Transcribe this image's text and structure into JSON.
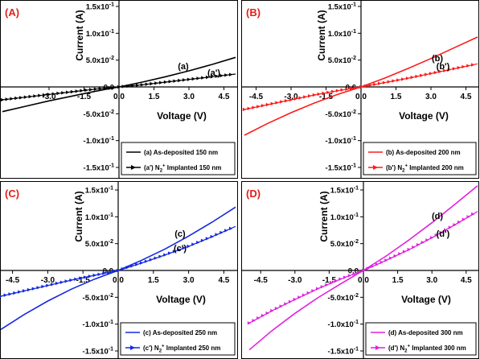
{
  "colors": {
    "axis": "#000000",
    "panel_label": "#e0201a",
    "text": "#000000"
  },
  "chart_data": [
    {
      "type": "line",
      "panel_label": "(A)",
      "xlabel": "Voltage (V)",
      "ylabel": "Current (A)",
      "xlim": [
        -5,
        5
      ],
      "ylim": [
        -0.15,
        0.15
      ],
      "x_ticks": [
        "-3.0",
        "-1.5",
        "0.0",
        "1.5",
        "3.0",
        "4.5"
      ],
      "y_ticks": [
        "1.5x10⁻¹",
        "1.0x10⁻¹",
        "5.0x10⁻²",
        "0.0",
        "-5.0x10⁻²",
        "-1.0x10⁻¹",
        "-1.5x10⁻¹"
      ],
      "series": [
        {
          "name": "(a) As-deposited 150 nm",
          "label": "(a)",
          "color": "#000000",
          "style": "solid",
          "x": [
            -5,
            -4,
            -3,
            -2,
            -1,
            0,
            1,
            2,
            3,
            4,
            5
          ],
          "values": [
            -0.046,
            -0.036,
            -0.026,
            -0.017,
            -0.008,
            0.0,
            0.009,
            0.019,
            0.03,
            0.042,
            0.055
          ]
        },
        {
          "name": "(a') N₂⁺ Implanted 150 nm",
          "label": "(a')",
          "color": "#000000",
          "style": "marker",
          "x": [
            -5,
            -4,
            -3,
            -2,
            -1,
            0,
            1,
            2,
            3,
            4,
            5
          ],
          "values": [
            -0.024,
            -0.019,
            -0.014,
            -0.009,
            -0.004,
            0.0,
            0.004,
            0.009,
            0.014,
            0.019,
            0.024
          ]
        }
      ],
      "legend": [
        {
          "prefix": "(a) As-deposited 150 nm",
          "suffix": ""
        },
        {
          "prefix": "(a') N",
          "sub": "2",
          "sup": "+",
          "suffix": " Implanted 150 nm"
        }
      ]
    },
    {
      "type": "line",
      "panel_label": "(B)",
      "xlabel": "Voltage (V)",
      "ylabel": "Current (A)",
      "xlim": [
        -5,
        5
      ],
      "ylim": [
        -0.15,
        0.15
      ],
      "x_ticks": [
        "-4.5",
        "-3.0",
        "-1.5",
        "0.0",
        "1.5",
        "3.0",
        "4.5"
      ],
      "y_ticks": [
        "1.5x10⁻¹",
        "1.0x10⁻¹",
        "5.0x10⁻²",
        "0.0",
        "-5.0x10⁻²",
        "-1.0x10⁻¹",
        "-1.5x10⁻¹"
      ],
      "series": [
        {
          "name": "(b) As-deposited 200 nm",
          "label": "(b)",
          "color": "#ff1a1a",
          "style": "solid",
          "x": [
            -5,
            -4,
            -3,
            -2,
            -1,
            0,
            1,
            2,
            3,
            4,
            5
          ],
          "values": [
            -0.09,
            -0.068,
            -0.048,
            -0.03,
            -0.014,
            0.0,
            0.016,
            0.034,
            0.053,
            0.073,
            0.093
          ]
        },
        {
          "name": "(b') N₂⁺ Implanted 200 nm",
          "label": "(b')",
          "color": "#ff1a1a",
          "style": "marker",
          "x": [
            -5,
            -4,
            -3,
            -2,
            -1,
            0,
            1,
            2,
            3,
            4,
            5
          ],
          "values": [
            -0.042,
            -0.033,
            -0.024,
            -0.015,
            -0.007,
            0.0,
            0.008,
            0.016,
            0.025,
            0.034,
            0.043
          ]
        }
      ],
      "legend": [
        {
          "prefix": "(b) As-deposited 200 nm",
          "suffix": ""
        },
        {
          "prefix": "(b') N",
          "sub": "2",
          "sup": "+",
          "suffix": " Implanted 200 nm"
        }
      ]
    },
    {
      "type": "line",
      "panel_label": "(C)",
      "xlabel": "Voltage (V)",
      "ylabel": "Current (A)",
      "xlim": [
        -5,
        5
      ],
      "ylim": [
        -0.15,
        0.15
      ],
      "x_ticks": [
        "-4.5",
        "-3.0",
        "-1.5",
        "0.0",
        "1.5",
        "3.0",
        "4.5"
      ],
      "y_ticks": [
        "1.5x10⁻¹",
        "1.0x10⁻¹",
        "5.0x10⁻²",
        "0.0",
        "-5.0x10⁻²",
        "-1.0x10⁻¹",
        "-1.5x10⁻¹"
      ],
      "series": [
        {
          "name": "(c) As-deposited 250 nm",
          "label": "(c)",
          "color": "#1428e0",
          "style": "solid",
          "x": [
            -5,
            -4,
            -3,
            -2,
            -1,
            0,
            1,
            2,
            3,
            4,
            5
          ],
          "values": [
            -0.11,
            -0.082,
            -0.057,
            -0.035,
            -0.016,
            0.0,
            0.019,
            0.04,
            0.064,
            0.09,
            0.118
          ]
        },
        {
          "name": "(c') N₂⁺ Implanted 250 nm",
          "label": "(c')",
          "color": "#1428e0",
          "style": "marker",
          "x": [
            -5,
            -4,
            -3,
            -2,
            -1,
            0,
            1,
            2,
            3,
            4,
            5
          ],
          "values": [
            -0.048,
            -0.038,
            -0.028,
            -0.018,
            -0.009,
            0.0,
            0.014,
            0.029,
            0.045,
            0.063,
            0.082
          ]
        }
      ],
      "legend": [
        {
          "prefix": "(c) As-deposited 250 nm",
          "suffix": ""
        },
        {
          "prefix": "(c') N",
          "sub": "2",
          "sup": "+",
          "suffix": " Implanted 250 nm"
        }
      ]
    },
    {
      "type": "line",
      "panel_label": "(D)",
      "xlabel": "Voltage (V)",
      "ylabel": "Current (A)",
      "xlim": [
        -5,
        5
      ],
      "ylim": [
        -0.15,
        0.15
      ],
      "x_ticks": [
        "-4.5",
        "-3.0",
        "-1.5",
        "0.0",
        "1.5",
        "3.0",
        "4.5"
      ],
      "y_ticks": [
        "1.5x10⁻¹",
        "1.0x10⁻¹",
        "5.0x10⁻²",
        "0.0",
        "-5.0x10⁻²",
        "-1.0x10⁻¹",
        "-1.5x10⁻¹"
      ],
      "series": [
        {
          "name": "(d) As-deposited 300 nm",
          "label": "(d)",
          "color": "#e020e0",
          "style": "solid",
          "x": [
            -5,
            -4,
            -3,
            -2,
            -1,
            0,
            1,
            2,
            3,
            4,
            5
          ],
          "values": [
            -0.148,
            -0.112,
            -0.08,
            -0.051,
            -0.025,
            0.0,
            0.027,
            0.057,
            0.089,
            0.123,
            0.158
          ]
        },
        {
          "name": "(d') N₂⁺ Implanted 300 nm",
          "label": "(d')",
          "color": "#e020e0",
          "style": "marker",
          "x": [
            -5,
            -4,
            -3,
            -2,
            -1,
            0,
            1,
            2,
            3,
            4,
            5
          ],
          "values": [
            -0.098,
            -0.075,
            -0.054,
            -0.034,
            -0.016,
            0.0,
            0.019,
            0.039,
            0.061,
            0.085,
            0.11
          ]
        }
      ],
      "legend": [
        {
          "prefix": "(d) As-deposited 300 nm",
          "suffix": ""
        },
        {
          "prefix": "(d') N",
          "sub": "2",
          "sup": "+",
          "suffix": " Implanted 300 nm"
        }
      ]
    }
  ]
}
